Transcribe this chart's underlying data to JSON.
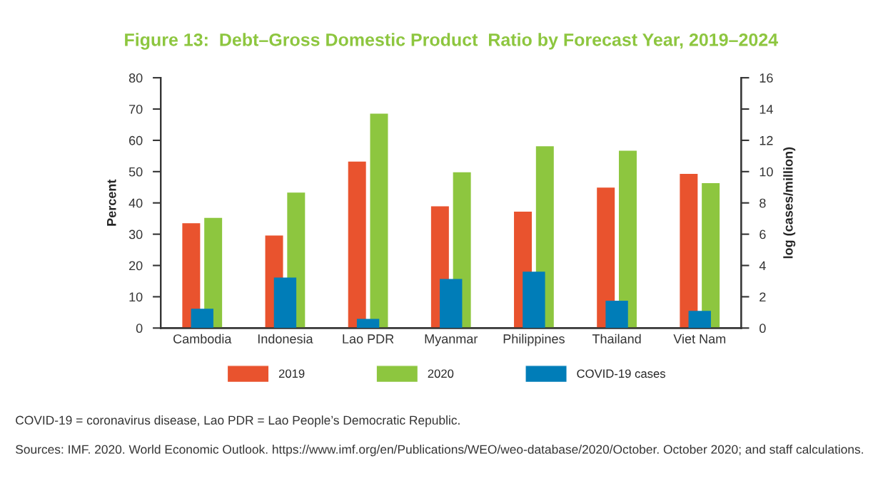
{
  "chart_data": {
    "type": "bar",
    "title": "Figure 13:  Debt–Gross Domestic Product  Ratio by Forecast Year, 2019–2024",
    "categories": [
      "Cambodia",
      "Indonesia",
      "Lao PDR",
      "Myanmar",
      "Philippines",
      "Thailand",
      "Viet Nam"
    ],
    "series": [
      {
        "name": "2019",
        "color": "#e9532e",
        "values": [
          33.5,
          29.6,
          53.2,
          38.9,
          37.2,
          44.9,
          49.3
        ]
      },
      {
        "name": "2020",
        "color": "#8dc63f",
        "values": [
          35.2,
          43.3,
          68.5,
          49.8,
          58.1,
          56.7,
          46.3
        ]
      },
      {
        "name": "COVID-19 cases",
        "color": "#007db8",
        "axis": "y2",
        "values": [
          1.24,
          3.23,
          0.59,
          3.14,
          3.6,
          1.75,
          1.1
        ]
      }
    ],
    "ylabel": "Percent",
    "y2label": "log (cases/million)",
    "ylim": [
      0,
      80
    ],
    "yticks": [
      0,
      10,
      20,
      30,
      40,
      50,
      60,
      70,
      80
    ],
    "y2lim": [
      0,
      16
    ],
    "y2ticks": [
      0,
      2,
      4,
      6,
      8,
      10,
      12,
      14,
      16
    ],
    "grid": false,
    "legend": "bottom",
    "annotations": [
      "COVID-19 = coronavirus disease, Lao PDR = Lao People’s Democratic Republic.",
      "Sources: IMF. 2020. World Economic Outlook. https://www.imf.org/en/Publications/WEO/weo-database/2020/October. October 2020; and staff calculations."
    ]
  }
}
